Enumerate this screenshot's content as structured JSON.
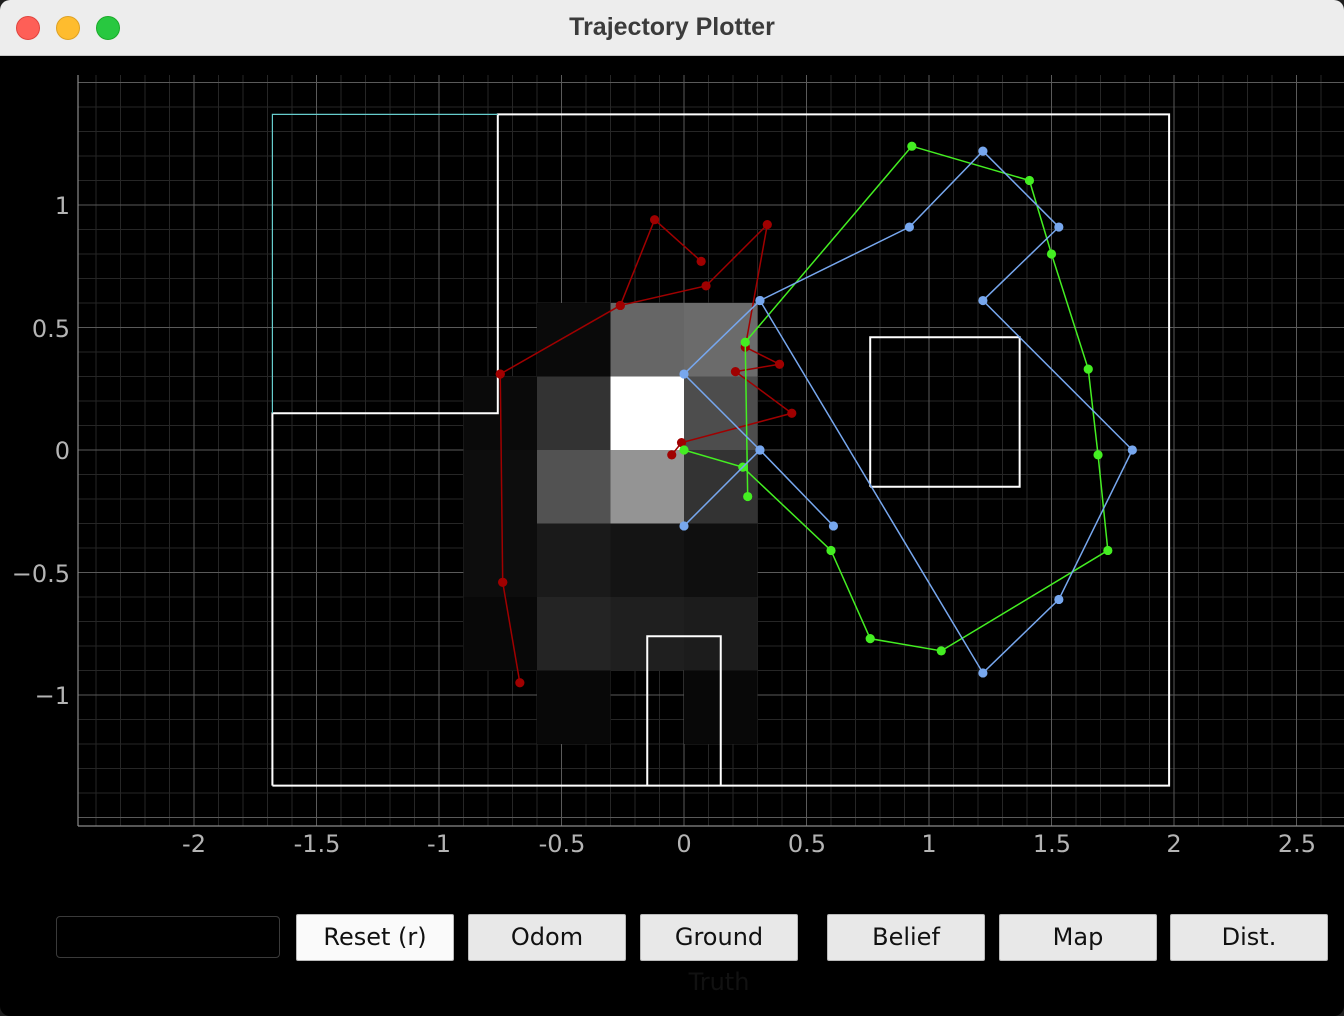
{
  "window": {
    "title": "Trajectory Plotter"
  },
  "plot": {
    "x_ticks": [
      "-2",
      "-1.5",
      "-1",
      "-0.5",
      "0",
      "0.5",
      "1",
      "1.5",
      "2",
      "2.5"
    ],
    "y_ticks": [
      "1",
      "0.5",
      "0",
      "−0.5",
      "−1"
    ],
    "colors": {
      "background": "#000000",
      "grid_major": "#5a5a5a",
      "grid_minor": "#262626",
      "map_walls": "#ffffff",
      "map_accent": "#66cccc",
      "odom": "#a00000",
      "ground_truth": "#44ee22",
      "belief": "#77a7ee"
    },
    "belief_grid": [
      {
        "x": -0.75,
        "y": -0.45,
        "intensity": 0.05
      },
      {
        "x": -0.45,
        "y": -0.45,
        "intensity": 0.1
      },
      {
        "x": -0.15,
        "y": -0.45,
        "intensity": 0.08
      },
      {
        "x": 0.15,
        "y": -0.45,
        "intensity": 0.06
      },
      {
        "x": -0.75,
        "y": -0.15,
        "intensity": 0.05
      },
      {
        "x": -0.45,
        "y": -0.15,
        "intensity": 0.32
      },
      {
        "x": -0.15,
        "y": -0.15,
        "intensity": 0.58
      },
      {
        "x": 0.15,
        "y": -0.15,
        "intensity": 0.2
      },
      {
        "x": -0.75,
        "y": 0.15,
        "intensity": 0.04
      },
      {
        "x": -0.45,
        "y": 0.15,
        "intensity": 0.2
      },
      {
        "x": -0.15,
        "y": 0.15,
        "intensity": 1.0
      },
      {
        "x": 0.15,
        "y": 0.15,
        "intensity": 0.3
      },
      {
        "x": -0.45,
        "y": 0.45,
        "intensity": 0.04
      },
      {
        "x": -0.15,
        "y": 0.45,
        "intensity": 0.4
      },
      {
        "x": 0.15,
        "y": 0.45,
        "intensity": 0.42
      },
      {
        "x": -0.75,
        "y": -0.75,
        "intensity": 0.03
      },
      {
        "x": -0.45,
        "y": -0.75,
        "intensity": 0.14
      },
      {
        "x": -0.15,
        "y": -0.75,
        "intensity": 0.12
      },
      {
        "x": 0.15,
        "y": -0.75,
        "intensity": 0.11
      },
      {
        "x": -0.45,
        "y": -1.05,
        "intensity": 0.03
      },
      {
        "x": 0.15,
        "y": -1.05,
        "intensity": 0.03
      }
    ],
    "map_lines": [
      [
        [
          -1.68,
          -1.37
        ],
        [
          1.98,
          -1.37
        ],
        [
          1.98,
          1.37
        ],
        [
          -0.76,
          1.37
        ],
        [
          -0.76,
          0.15
        ],
        [
          -1.68,
          0.15
        ],
        [
          -1.68,
          -1.37
        ]
      ],
      [
        [
          0.76,
          -0.15
        ],
        [
          1.37,
          -0.15
        ],
        [
          1.37,
          0.46
        ],
        [
          0.76,
          0.46
        ],
        [
          0.76,
          -0.15
        ]
      ],
      [
        [
          -0.15,
          -1.37
        ],
        [
          -0.15,
          -0.76
        ],
        [
          0.15,
          -0.76
        ],
        [
          0.15,
          -1.37
        ]
      ]
    ],
    "map_accent_lines": [
      [
        [
          -0.76,
          1.37
        ],
        [
          -1.68,
          1.37
        ],
        [
          -1.68,
          0.15
        ]
      ]
    ]
  },
  "chart_data": {
    "type": "scatter",
    "xlim": [
      -2.47,
      2.7
    ],
    "ylim": [
      -1.53,
      1.53
    ],
    "grid": true,
    "series": [
      {
        "name": "odom",
        "points": [
          [
            -0.05,
            -0.02
          ],
          [
            -0.01,
            0.03
          ],
          [
            0.44,
            0.15
          ],
          [
            0.21,
            0.32
          ],
          [
            0.39,
            0.35
          ],
          [
            0.25,
            0.42
          ],
          [
            0.34,
            0.92
          ],
          [
            0.09,
            0.67
          ],
          [
            -0.26,
            0.59
          ],
          [
            -0.75,
            0.31
          ],
          [
            -0.74,
            -0.54
          ],
          [
            -0.67,
            -0.95
          ],
          [
            -0.74,
            -0.54
          ],
          [
            -0.75,
            0.31
          ],
          [
            -0.26,
            0.59
          ],
          [
            -0.12,
            0.94
          ],
          [
            0.07,
            0.77
          ]
        ]
      },
      {
        "name": "ground_truth",
        "points": [
          [
            0.0,
            0.0
          ],
          [
            0.24,
            -0.07
          ],
          [
            0.6,
            -0.41
          ],
          [
            0.76,
            -0.77
          ],
          [
            1.05,
            -0.82
          ],
          [
            1.73,
            -0.41
          ],
          [
            1.69,
            -0.02
          ],
          [
            1.65,
            0.33
          ],
          [
            1.5,
            0.8
          ],
          [
            1.41,
            1.1
          ],
          [
            0.93,
            1.24
          ],
          [
            0.25,
            0.44
          ],
          [
            0.26,
            -0.19
          ]
        ]
      },
      {
        "name": "belief",
        "points": [
          [
            0.0,
            -0.31
          ],
          [
            0.31,
            0.0
          ],
          [
            0.61,
            -0.31
          ],
          [
            0.31,
            0.0
          ],
          [
            0.0,
            0.31
          ],
          [
            0.31,
            0.61
          ],
          [
            1.22,
            -0.91
          ],
          [
            1.53,
            -0.61
          ],
          [
            1.83,
            0.0
          ],
          [
            1.22,
            0.61
          ],
          [
            1.53,
            0.91
          ],
          [
            1.22,
            1.22
          ],
          [
            0.92,
            0.91
          ],
          [
            0.31,
            0.61
          ]
        ]
      }
    ]
  },
  "controls": {
    "status_text": "",
    "reset_label": "Reset (r)",
    "odom_label": "Odom",
    "ground_truth_label": "Ground Truth",
    "belief_label": "Belief",
    "map_label": "Map",
    "dist_label": "Dist."
  }
}
